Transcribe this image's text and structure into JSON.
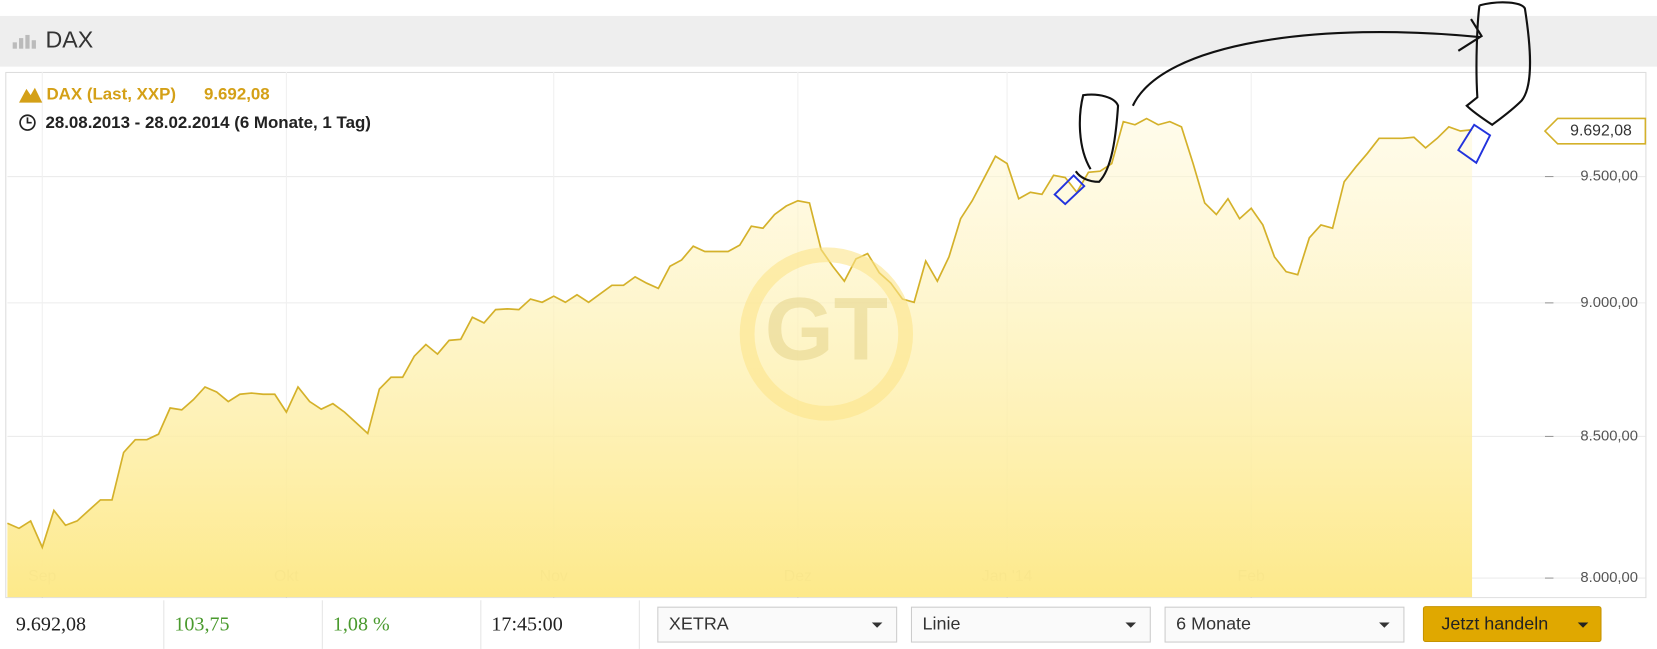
{
  "header": {
    "title": "DAX"
  },
  "chart_data": {
    "type": "area",
    "series_name": "DAX (Last, XXP)",
    "last_value_label": "9.692,08",
    "period": "28.08.2013 - 28.02.2014 (6 Monate, 1 Tag)",
    "watermark": "GT",
    "color": "#d4b12a",
    "log_scale": true,
    "grid": true,
    "categories": [
      null,
      null,
      null,
      "Sep",
      null,
      null,
      null,
      null,
      null,
      null,
      null,
      null,
      null,
      null,
      null,
      null,
      null,
      null,
      null,
      null,
      null,
      null,
      null,
      null,
      "Okt",
      null,
      null,
      null,
      null,
      null,
      null,
      null,
      null,
      null,
      null,
      null,
      null,
      null,
      null,
      null,
      null,
      null,
      null,
      null,
      null,
      null,
      null,
      "Nov",
      null,
      null,
      null,
      null,
      null,
      null,
      null,
      null,
      null,
      null,
      null,
      null,
      null,
      null,
      null,
      null,
      null,
      null,
      null,
      null,
      "Dez",
      null,
      null,
      null,
      null,
      null,
      null,
      null,
      null,
      null,
      null,
      null,
      null,
      null,
      null,
      null,
      null,
      null,
      "Jan '14",
      null,
      null,
      null,
      null,
      null,
      null,
      null,
      null,
      null,
      null,
      null,
      null,
      null,
      null,
      null,
      null,
      null,
      null,
      null,
      null,
      "Feb",
      null,
      null,
      null,
      null,
      null,
      null,
      null,
      null,
      null,
      null,
      null,
      null,
      null,
      null,
      null,
      null,
      null,
      null,
      null
    ],
    "values": [
      8190,
      8172,
      8198,
      8106,
      8235,
      8183,
      8198,
      8235,
      8272,
      8272,
      8442,
      8488,
      8488,
      8508,
      8604,
      8597,
      8635,
      8682,
      8663,
      8628,
      8655,
      8659,
      8655,
      8655,
      8589,
      8682,
      8628,
      8600,
      8620,
      8589,
      8550,
      8511,
      8674,
      8718,
      8718,
      8797,
      8841,
      8805,
      8857,
      8861,
      8945,
      8923,
      8974,
      8977,
      8974,
      9015,
      9002,
      9026,
      9002,
      9031,
      9002,
      9035,
      9068,
      9068,
      9101,
      9076,
      9056,
      9142,
      9167,
      9221,
      9200,
      9200,
      9200,
      9225,
      9300,
      9292,
      9347,
      9381,
      9402,
      9393,
      9208,
      9142,
      9084,
      9171,
      9192,
      9117,
      9076,
      9015,
      9002,
      9163,
      9084,
      9179,
      9330,
      9402,
      9492,
      9583,
      9553,
      9410,
      9436,
      9428,
      9505,
      9496,
      9436,
      9517,
      9522,
      9553,
      9726,
      9713,
      9739,
      9713,
      9726,
      9704,
      9553,
      9393,
      9347,
      9410,
      9330,
      9372,
      9305,
      9179,
      9121,
      9109,
      9254,
      9305,
      9292,
      9479,
      9539,
      9595,
      9657,
      9657,
      9657,
      9661,
      9617,
      9657,
      9704,
      9687,
      9692.08
    ],
    "ylim": [
      7935,
      9935
    ],
    "yticks": [
      {
        "value": 8000,
        "label": "8.000,00"
      },
      {
        "value": 8500,
        "label": "8.500,00"
      },
      {
        "value": 9000,
        "label": "9.000,00"
      },
      {
        "value": 9500,
        "label": "9.500,00"
      }
    ]
  },
  "quote_bar": {
    "last": "9.692,08",
    "change": "103,75",
    "change_pct": "1,08 %",
    "time": "17:45:00"
  },
  "controls": {
    "exchange": "XETRA",
    "chart_type": "Linie",
    "range": "6 Monate",
    "button": "Jetzt handeln"
  }
}
